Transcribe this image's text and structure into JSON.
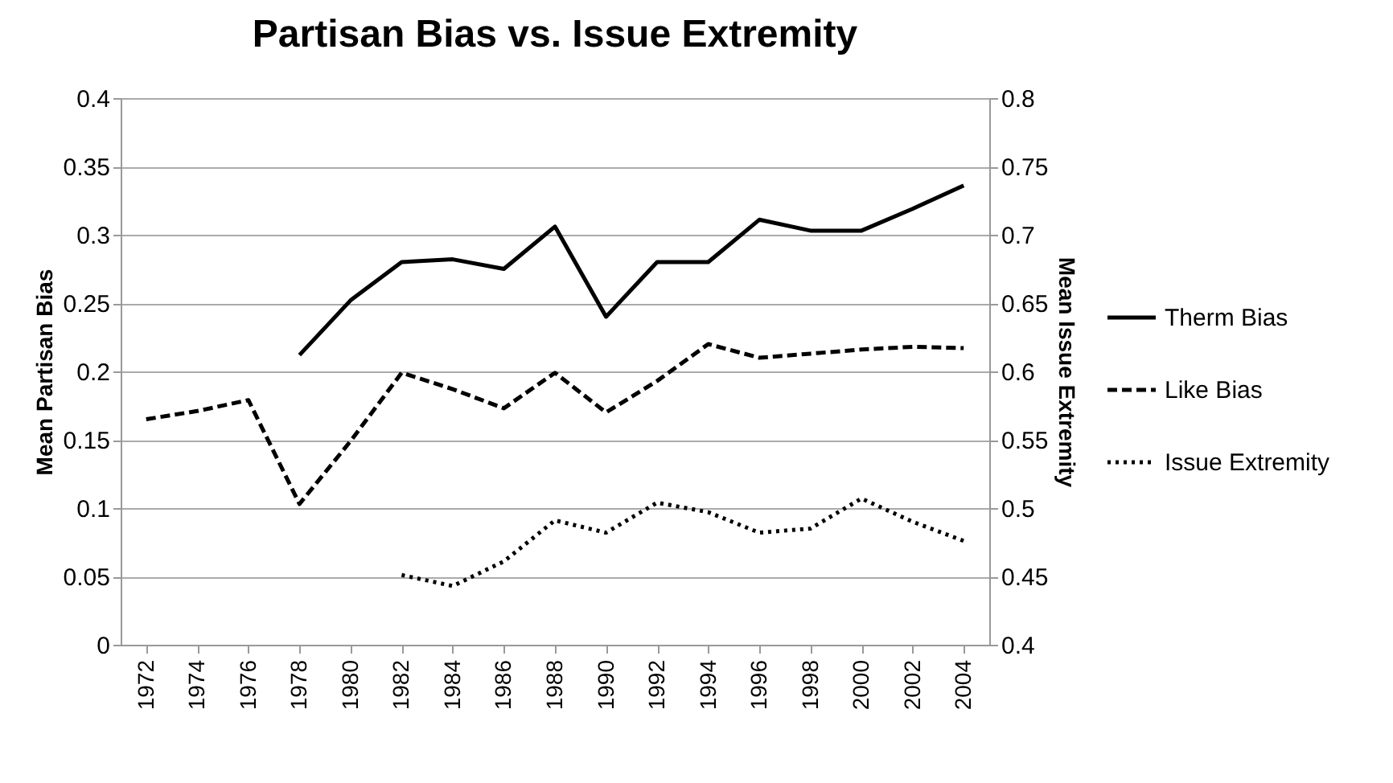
{
  "chart_data": {
    "type": "line",
    "title": "Partisan Bias vs. Issue Extremity",
    "ylabel": "Mean Partisan Bias",
    "y2label": "Mean Issue Extremity",
    "categories": [
      "1972",
      "1974",
      "1976",
      "1978",
      "1980",
      "1982",
      "1984",
      "1986",
      "1988",
      "1990",
      "1992",
      "1994",
      "1996",
      "1998",
      "2000",
      "2002",
      "2004"
    ],
    "series": [
      {
        "name": "Therm Bias",
        "color": "#000000",
        "line_style": "solid",
        "values": [
          null,
          null,
          null,
          0.212,
          0.252,
          0.28,
          0.282,
          0.275,
          0.306,
          0.24,
          0.28,
          0.28,
          0.311,
          0.303,
          0.303,
          0.319,
          0.336
        ]
      },
      {
        "name": "Like Bias",
        "color": "#000000",
        "line_style": "dashed",
        "values": [
          0.165,
          0.171,
          0.179,
          0.103,
          0.149,
          0.199,
          0.187,
          0.173,
          0.199,
          0.17,
          0.193,
          0.22,
          0.21,
          0.213,
          0.216,
          0.218,
          0.217
        ]
      },
      {
        "name": "Issue Extremity",
        "color": "#000000",
        "line_style": "dotted",
        "axis": "y2",
        "values": [
          null,
          null,
          null,
          null,
          null,
          0.451,
          0.443,
          0.461,
          0.491,
          0.482,
          0.504,
          0.497,
          0.482,
          0.485,
          0.507,
          0.49,
          0.476
        ]
      }
    ],
    "ylim": [
      0,
      0.4
    ],
    "yticks": [
      0,
      0.05,
      0.1,
      0.15,
      0.2,
      0.25,
      0.3,
      0.35,
      0.4
    ],
    "y2lim": [
      0.4,
      0.8
    ],
    "y2ticks": [
      0.4,
      0.45,
      0.5,
      0.55,
      0.6,
      0.65,
      0.7,
      0.75,
      0.8
    ],
    "grid": "y",
    "legend": "right"
  }
}
